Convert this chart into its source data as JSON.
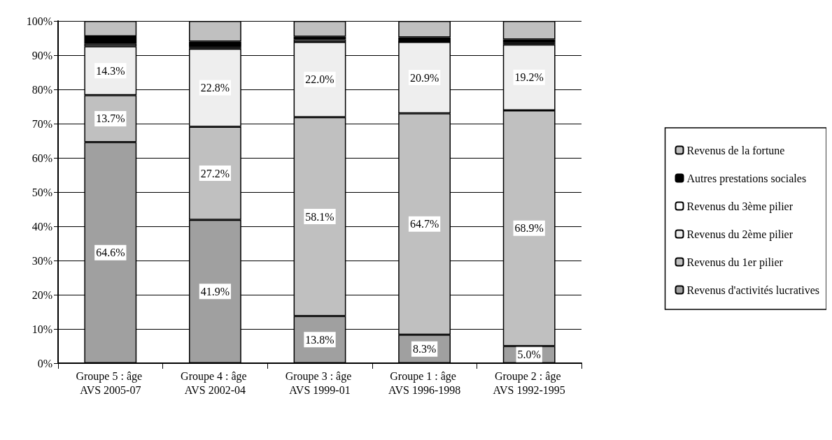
{
  "chart_data": {
    "type": "bar",
    "stacked": true,
    "categories": [
      "Groupe 5 : âge AVS 2005-07",
      "Groupe 4 : âge AVS 2002-04",
      "Groupe 3 : âge AVS 1999-01",
      "Groupe 1 : âge AVS 1996-1998",
      "Groupe 2 : âge AVS 1992-1995"
    ],
    "series": [
      {
        "name": "Revenus d'activités lucratives",
        "color": "#a0a0a0",
        "values": [
          64.6,
          41.9,
          13.8,
          8.3,
          5.0
        ],
        "value_labels": [
          "64.6%",
          "41.9%",
          "13.8%",
          "8.3%",
          "5.0%"
        ]
      },
      {
        "name": "Revenus du 1er pilier",
        "color": "#c0c0c0",
        "values": [
          13.7,
          27.2,
          58.1,
          64.7,
          68.9
        ],
        "value_labels": [
          "13.7%",
          "27.2%",
          "58.1%",
          "64.7%",
          "68.9%"
        ]
      },
      {
        "name": "Revenus du 2ème pilier",
        "color": "#eeeeee",
        "values": [
          14.3,
          22.8,
          22.0,
          20.9,
          19.2
        ],
        "value_labels": [
          "14.3%",
          "22.8%",
          "22.0%",
          "20.9%",
          "19.2%"
        ]
      },
      {
        "name": "Revenus du 3ème pilier",
        "color": "#ffffff",
        "values": [
          0.7,
          0.5,
          0.7,
          0.0,
          0.5
        ]
      },
      {
        "name": "Autres prestations sociales",
        "color": "#000000",
        "values": [
          2.2,
          1.6,
          0.8,
          1.3,
          1.0
        ]
      },
      {
        "name": "Revenus de la fortune",
        "color": "#c0c0c0",
        "values": [
          4.5,
          6.0,
          4.6,
          4.8,
          5.4
        ]
      }
    ],
    "ylim": [
      0,
      100
    ],
    "yticks": [
      {
        "value": 0,
        "label": "0%"
      },
      {
        "value": 10,
        "label": "10%"
      },
      {
        "value": 20,
        "label": "20%"
      },
      {
        "value": 30,
        "label": "30%"
      },
      {
        "value": 40,
        "label": "40%"
      },
      {
        "value": 50,
        "label": "50%"
      },
      {
        "value": 60,
        "label": "60%"
      },
      {
        "value": 70,
        "label": "70%"
      },
      {
        "value": 80,
        "label": "80%"
      },
      {
        "value": 90,
        "label": "90%"
      },
      {
        "value": 100,
        "label": "100%"
      }
    ],
    "grid": "y",
    "legend": "right"
  }
}
